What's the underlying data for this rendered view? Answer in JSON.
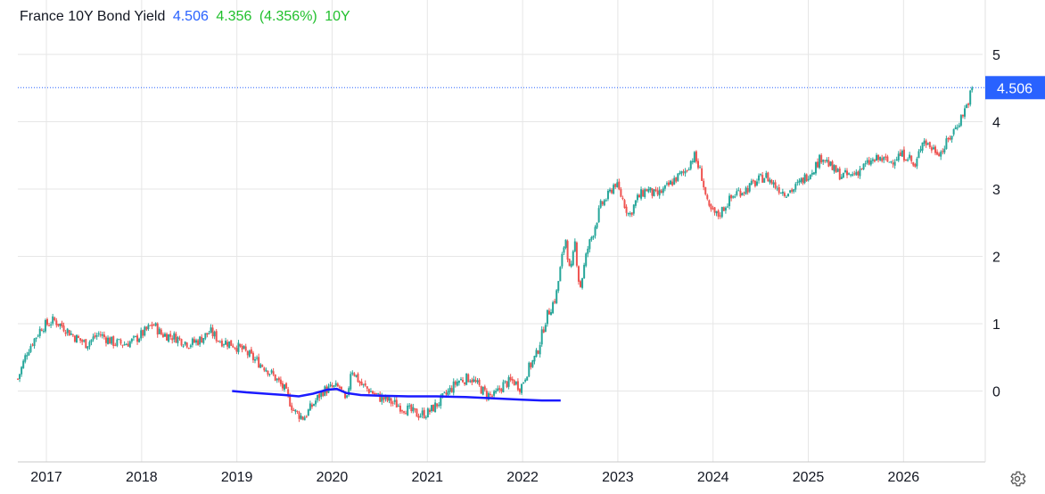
{
  "legend": {
    "symbol": "France 10Y Bond Yield",
    "last": "4.506",
    "change": "4.356",
    "change_pct": "(4.356%)",
    "period": "10Y"
  },
  "colors": {
    "up": "#26a69a",
    "down": "#ef5350",
    "accent": "#2962ff",
    "overlay": "#1a1aff",
    "last_color": "#2962ff",
    "change_color": "#22c02e",
    "grid": "#e6e6e6"
  },
  "settings_icon": "gear-icon",
  "chart_data": {
    "type": "candlestick",
    "title": "France 10Y Bond Yield",
    "y_ticks": [
      "5",
      "4",
      "3",
      "2",
      "1",
      "0"
    ],
    "y_range": [
      -0.9,
      5.6
    ],
    "x_ticks": [
      "2017",
      "2018",
      "2019",
      "2020",
      "2021",
      "2022",
      "2023",
      "2024",
      "2025",
      "2026"
    ],
    "x_range": [
      2016.7,
      2026.83
    ],
    "last_price": 4.506,
    "last_price_label": "4.506",
    "series_anchors": [
      [
        2016.7,
        0.18
      ],
      [
        2016.8,
        0.6
      ],
      [
        2016.95,
        0.95
      ],
      [
        2017.08,
        1.05
      ],
      [
        2017.18,
        0.95
      ],
      [
        2017.3,
        0.8
      ],
      [
        2017.42,
        0.7
      ],
      [
        2017.55,
        0.85
      ],
      [
        2017.7,
        0.72
      ],
      [
        2017.82,
        0.7
      ],
      [
        2017.92,
        0.75
      ],
      [
        2018.05,
        0.9
      ],
      [
        2018.12,
        1.0
      ],
      [
        2018.2,
        0.85
      ],
      [
        2018.35,
        0.8
      ],
      [
        2018.5,
        0.7
      ],
      [
        2018.6,
        0.75
      ],
      [
        2018.72,
        0.88
      ],
      [
        2018.82,
        0.75
      ],
      [
        2018.95,
        0.7
      ],
      [
        2019.07,
        0.6
      ],
      [
        2019.2,
        0.45
      ],
      [
        2019.3,
        0.35
      ],
      [
        2019.4,
        0.2
      ],
      [
        2019.5,
        0.02
      ],
      [
        2019.6,
        -0.3
      ],
      [
        2019.7,
        -0.4
      ],
      [
        2019.8,
        -0.2
      ],
      [
        2019.9,
        0.0
      ],
      [
        2020.0,
        0.05
      ],
      [
        2020.08,
        0.05
      ],
      [
        2020.15,
        -0.2
      ],
      [
        2020.2,
        0.35
      ],
      [
        2020.3,
        0.1
      ],
      [
        2020.4,
        0.0
      ],
      [
        2020.5,
        -0.1
      ],
      [
        2020.6,
        -0.15
      ],
      [
        2020.75,
        -0.25
      ],
      [
        2020.9,
        -0.35
      ],
      [
        2021.0,
        -0.33
      ],
      [
        2021.1,
        -0.2
      ],
      [
        2021.2,
        -0.05
      ],
      [
        2021.32,
        0.15
      ],
      [
        2021.45,
        0.2
      ],
      [
        2021.55,
        0.05
      ],
      [
        2021.62,
        -0.05
      ],
      [
        2021.7,
        -0.08
      ],
      [
        2021.8,
        0.1
      ],
      [
        2021.9,
        0.15
      ],
      [
        2021.98,
        0.05
      ],
      [
        2022.05,
        0.3
      ],
      [
        2022.15,
        0.55
      ],
      [
        2022.25,
        1.1
      ],
      [
        2022.35,
        1.4
      ],
      [
        2022.45,
        2.3
      ],
      [
        2022.5,
        1.7
      ],
      [
        2022.55,
        2.2
      ],
      [
        2022.6,
        1.5
      ],
      [
        2022.68,
        2.1
      ],
      [
        2022.75,
        2.4
      ],
      [
        2022.82,
        2.75
      ],
      [
        2022.9,
        2.9
      ],
      [
        2022.97,
        3.1
      ],
      [
        2023.05,
        2.85
      ],
      [
        2023.12,
        2.6
      ],
      [
        2023.2,
        2.85
      ],
      [
        2023.3,
        3.0
      ],
      [
        2023.4,
        2.9
      ],
      [
        2023.5,
        3.0
      ],
      [
        2023.6,
        3.15
      ],
      [
        2023.7,
        3.25
      ],
      [
        2023.8,
        3.5
      ],
      [
        2023.88,
        3.2
      ],
      [
        2023.95,
        2.7
      ],
      [
        2024.05,
        2.6
      ],
      [
        2024.15,
        2.8
      ],
      [
        2024.25,
        2.95
      ],
      [
        2024.35,
        3.0
      ],
      [
        2024.45,
        3.1
      ],
      [
        2024.55,
        3.2
      ],
      [
        2024.65,
        3.05
      ],
      [
        2024.75,
        2.95
      ],
      [
        2024.85,
        3.0
      ],
      [
        2024.95,
        3.15
      ],
      [
        2025.05,
        3.3
      ],
      [
        2025.15,
        3.5
      ],
      [
        2025.25,
        3.3
      ],
      [
        2025.35,
        3.2
      ],
      [
        2025.45,
        3.2
      ],
      [
        2025.55,
        3.3
      ],
      [
        2025.65,
        3.4
      ],
      [
        2025.75,
        3.45
      ],
      [
        2025.85,
        3.4
      ],
      [
        2025.95,
        3.5
      ],
      [
        2026.05,
        3.5
      ],
      [
        2026.12,
        3.3
      ],
      [
        2026.2,
        3.75
      ],
      [
        2026.3,
        3.6
      ],
      [
        2026.4,
        3.55
      ],
      [
        2026.5,
        3.8
      ],
      [
        2026.6,
        4.05
      ],
      [
        2026.68,
        4.3
      ],
      [
        2026.72,
        4.506
      ]
    ],
    "overlay_line": [
      [
        2018.95,
        0.0
      ],
      [
        2019.1,
        -0.02
      ],
      [
        2019.3,
        -0.04
      ],
      [
        2019.5,
        -0.06
      ],
      [
        2019.65,
        -0.08
      ],
      [
        2019.8,
        -0.04
      ],
      [
        2019.95,
        0.02
      ],
      [
        2020.05,
        0.03
      ],
      [
        2020.15,
        -0.03
      ],
      [
        2020.3,
        -0.06
      ],
      [
        2020.5,
        -0.07
      ],
      [
        2020.8,
        -0.08
      ],
      [
        2021.1,
        -0.08
      ],
      [
        2021.4,
        -0.09
      ],
      [
        2021.7,
        -0.11
      ],
      [
        2022.0,
        -0.13
      ],
      [
        2022.2,
        -0.14
      ],
      [
        2022.4,
        -0.14
      ]
    ]
  }
}
